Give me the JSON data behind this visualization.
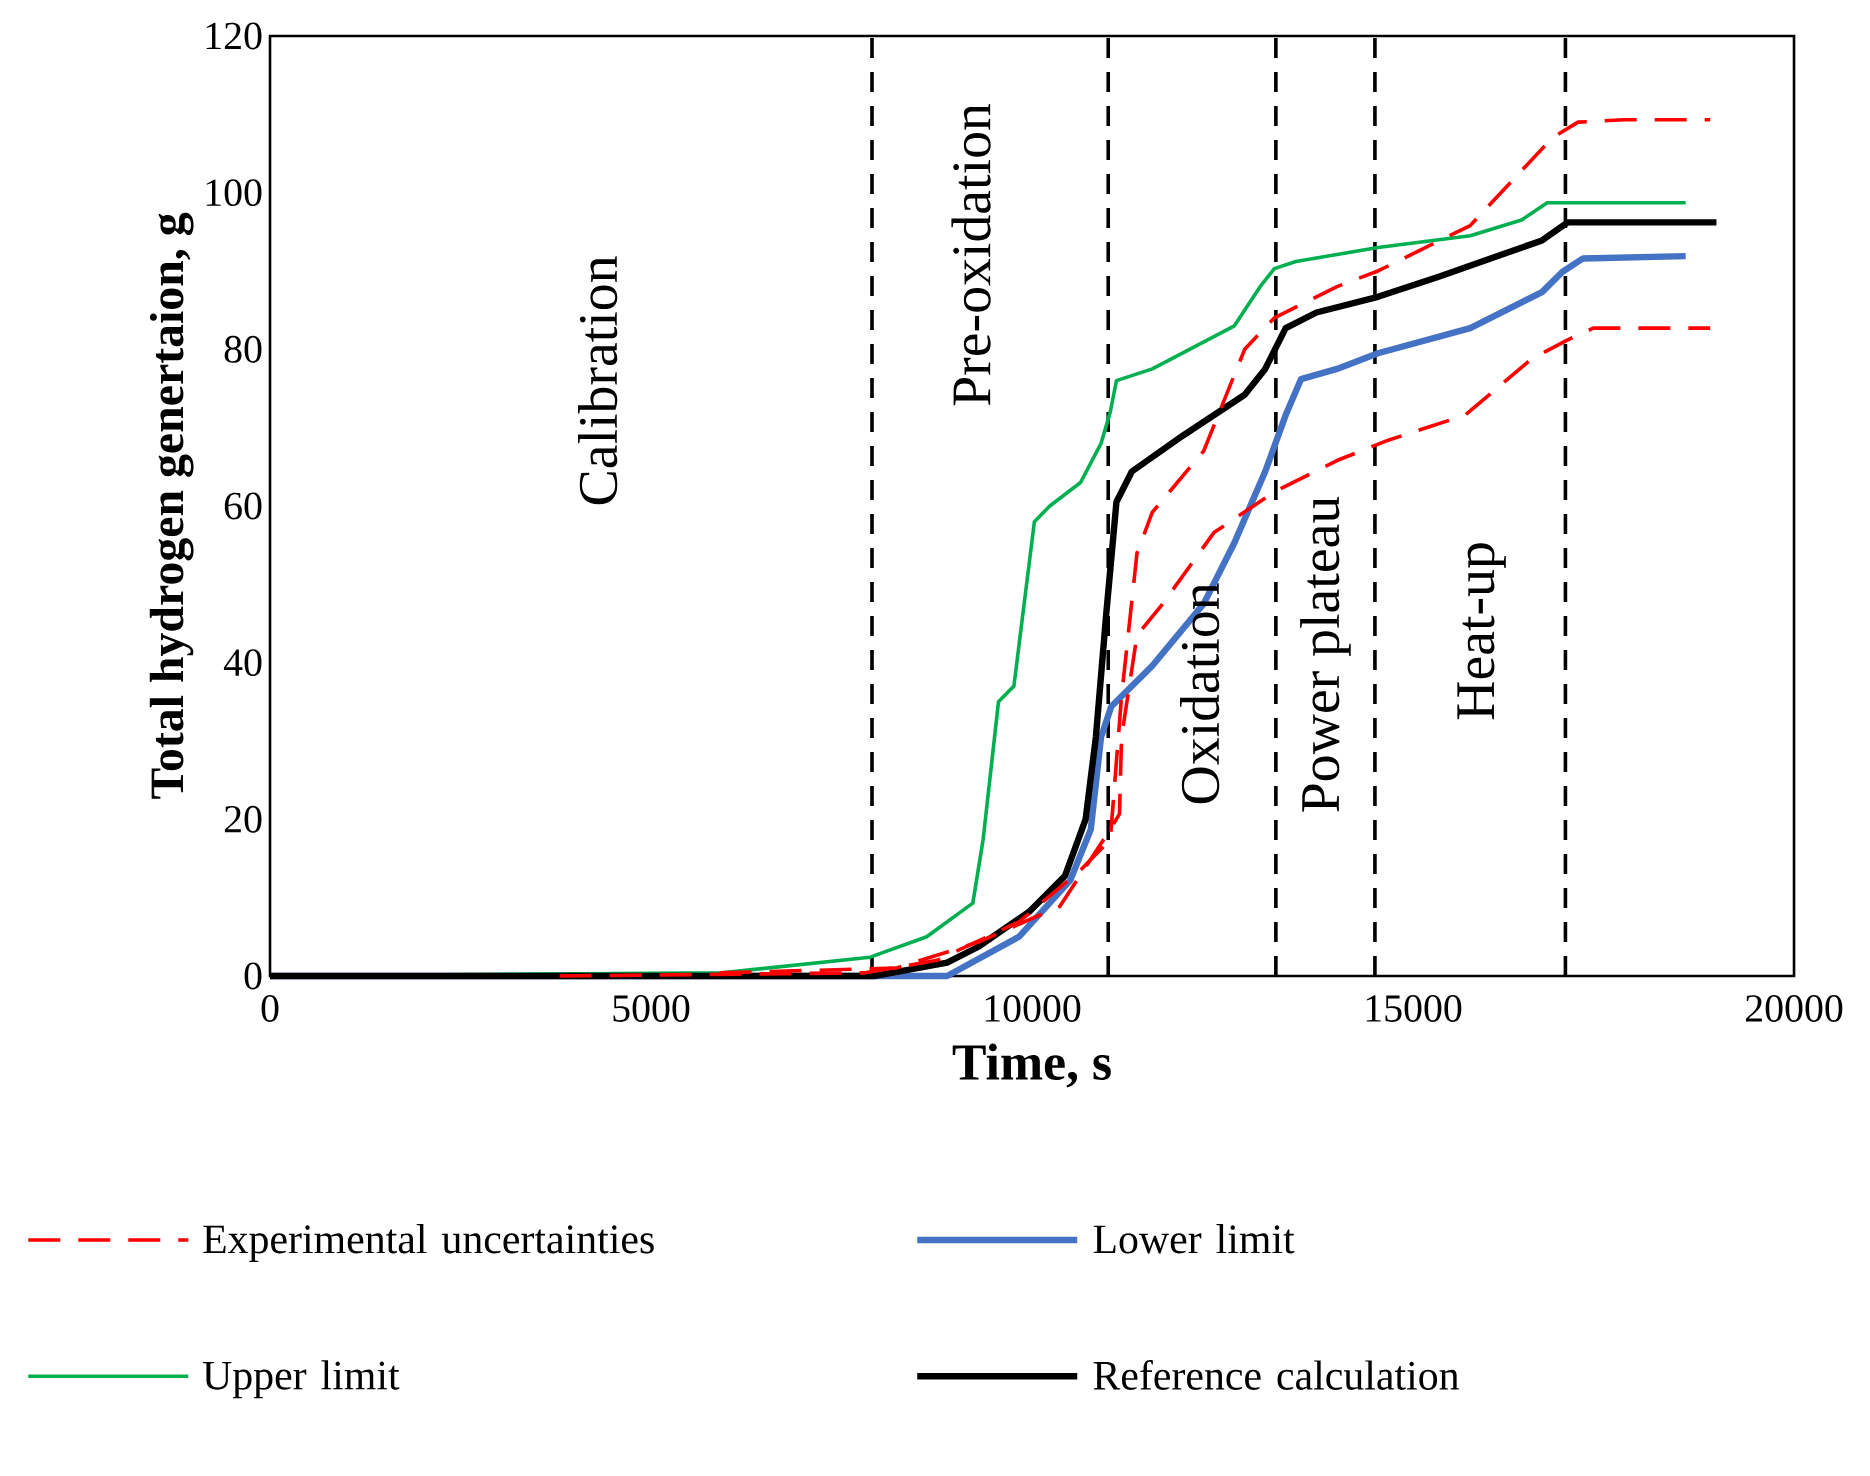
{
  "chart_data": {
    "type": "line",
    "xlabel": "Time, s",
    "ylabel": "Total hydrogen genertaion, g",
    "xlim": [
      0,
      20000
    ],
    "ylim": [
      0,
      120
    ],
    "xticks": [
      0,
      5000,
      10000,
      15000,
      20000
    ],
    "yticks": [
      0,
      20,
      40,
      60,
      80,
      100,
      120
    ],
    "legend": "bottom",
    "series": [
      {
        "name": "Experimental uncertainties",
        "color": "#ff0000",
        "line_style": "dashed",
        "x": [
          3800,
          7810,
          8752,
          9828,
          10636,
          11027,
          11175,
          11378,
          11579,
          12252,
          12791,
          13180,
          14002,
          14540,
          15751,
          16828,
          17165,
          17770,
          18900
        ],
        "values": [
          0,
          0.4,
          2,
          6.9,
          13.5,
          17.4,
          35.7,
          54,
          59.2,
          67,
          80,
          84,
          88,
          90,
          95.8,
          107,
          109,
          109.3,
          109.3
        ]
      },
      {
        "color": "#ff0000",
        "line_style": "dashed",
        "x": [
          5900,
          8214,
          9290,
          10366,
          11027,
          11148,
          11175,
          11378,
          11714,
          12387,
          13180,
          14002,
          14675,
          15684,
          16559,
          17030,
          17367,
          18900
        ],
        "values": [
          0.4,
          1,
          4.3,
          8.9,
          18.7,
          20.7,
          30.5,
          43.5,
          47.5,
          56.6,
          61.8,
          65.8,
          68.4,
          71.6,
          78.8,
          81.2,
          82.7,
          82.7
        ]
      },
      {
        "name": "Lower limit",
        "color": "#4472c4",
        "line_style": "solid",
        "x": [
          0,
          8886,
          9828,
          10501,
          10771,
          10906,
          11040,
          11579,
          12252,
          12656,
          13060,
          13329,
          13531,
          14002,
          14540,
          15751,
          16693,
          16962,
          17231,
          18578
        ],
        "values": [
          0,
          0,
          5,
          12.2,
          18.7,
          30.5,
          34.4,
          39.6,
          47.5,
          55.3,
          64.4,
          71.6,
          76.2,
          77.5,
          79.5,
          82.7,
          87.3,
          89.9,
          91.6,
          91.9
        ]
      },
      {
        "name": "Upper limit",
        "color": "#00b050",
        "line_style": "solid",
        "x": [
          0,
          5926,
          7877,
          8618,
          9223,
          9358,
          9560,
          9762,
          10031,
          10233,
          10637,
          10906,
          11027,
          11108,
          11579,
          12656,
          12993,
          13180,
          13463,
          14540,
          15751,
          16424,
          16761,
          18578
        ],
        "values": [
          0,
          0.4,
          2.4,
          5,
          9.3,
          17.4,
          35,
          37,
          58,
          60,
          63,
          68,
          72,
          76,
          77.5,
          83,
          88,
          90.3,
          91.2,
          93,
          94.5,
          96.5,
          98.7,
          98.7
        ]
      },
      {
        "name": "Reference calculation",
        "color": "#000000",
        "line_style": "solid",
        "x": [
          0,
          7942,
          8886,
          9290,
          9963,
          10434,
          10703,
          10838,
          10972,
          11108,
          11310,
          11983,
          12791,
          13060,
          13329,
          13733,
          14540,
          15347,
          16693,
          17030,
          18982
        ],
        "values": [
          0,
          0,
          1.7,
          3.7,
          8.2,
          12.8,
          20,
          30.5,
          46,
          60.5,
          64.4,
          69,
          74.2,
          77.5,
          82.7,
          84.7,
          86.7,
          89.3,
          93.9,
          96.2,
          96.2
        ]
      }
    ],
    "ref_lines": [
      {
        "axis": "x",
        "value": 7900,
        "color": "#000000",
        "line_style": "dashed"
      },
      {
        "axis": "x",
        "value": 11000,
        "color": "#000000",
        "line_style": "dashed"
      },
      {
        "axis": "x",
        "value": 13200,
        "color": "#000000",
        "line_style": "dashed"
      },
      {
        "axis": "x",
        "value": 14500,
        "color": "#000000",
        "line_style": "dashed"
      },
      {
        "axis": "x",
        "value": 17000,
        "color": "#000000",
        "line_style": "dashed"
      }
    ],
    "annotations": [
      "Calibration",
      "Pre-oxidation",
      "Oxidation",
      "Power plateau",
      "Heat-up"
    ]
  }
}
